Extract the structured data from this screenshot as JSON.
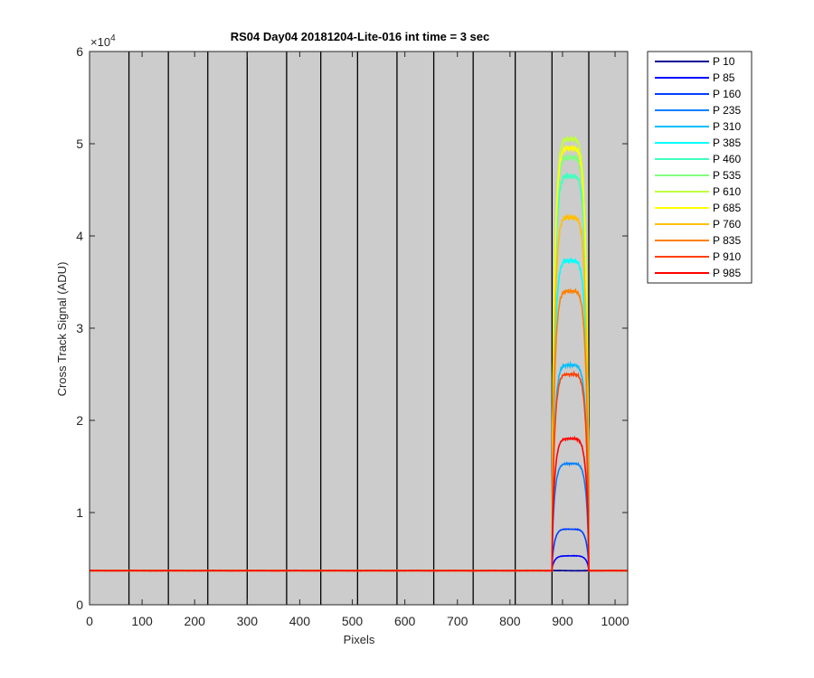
{
  "chart_data": {
    "type": "line",
    "title": "RS04 Day04 20181204-Lite-016 int time = 3 sec",
    "xlabel": "Pixels",
    "ylabel": "Cross Track Signal (ADU)",
    "xlim": [
      0,
      1024
    ],
    "ylim": [
      0,
      60000
    ],
    "y_exponent_label": "×10",
    "y_exponent_value": "4",
    "xticks": [
      0,
      100,
      200,
      300,
      400,
      500,
      600,
      700,
      800,
      900,
      1000
    ],
    "yticks": [
      0,
      10000,
      20000,
      30000,
      40000,
      50000,
      60000
    ],
    "yticklabels": [
      "0",
      "1",
      "2",
      "3",
      "4",
      "5",
      "6"
    ],
    "xticklabels": [
      "0",
      "100",
      "200",
      "300",
      "400",
      "500",
      "600",
      "700",
      "800",
      "900",
      "1000"
    ],
    "background_color": "#cccccc",
    "vertical_dividers_x": [
      75,
      150,
      225,
      300,
      375,
      440,
      510,
      585,
      655,
      730,
      810,
      880,
      950
    ],
    "baseline": 3700,
    "signal_region": [
      880,
      950
    ],
    "legend_position": "outside-top-right",
    "series": [
      {
        "name": "P 10",
        "color": "#00008f",
        "peak": 3700
      },
      {
        "name": "P 85",
        "color": "#0000ff",
        "peak": 5300
      },
      {
        "name": "P 160",
        "color": "#0040ff",
        "peak": 8200
      },
      {
        "name": "P 235",
        "color": "#0080ff",
        "peak": 15300
      },
      {
        "name": "P 310",
        "color": "#00bfff",
        "peak": 26000
      },
      {
        "name": "P 385",
        "color": "#00ffff",
        "peak": 37300
      },
      {
        "name": "P 460",
        "color": "#40ffbf",
        "peak": 46500
      },
      {
        "name": "P 535",
        "color": "#80ff80",
        "peak": 48500
      },
      {
        "name": "P 610",
        "color": "#bfff40",
        "peak": 50500
      },
      {
        "name": "P 685",
        "color": "#ffff00",
        "peak": 49500
      },
      {
        "name": "P 760",
        "color": "#ffbf00",
        "peak": 42000
      },
      {
        "name": "P 835",
        "color": "#ff8000",
        "peak": 34000
      },
      {
        "name": "P 910",
        "color": "#ff4000",
        "peak": 25000
      },
      {
        "name": "P 985",
        "color": "#ff0000",
        "peak": 18000
      }
    ]
  }
}
